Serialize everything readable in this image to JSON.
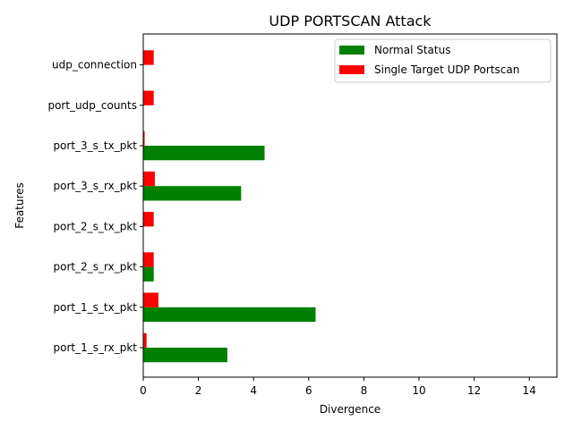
{
  "chart_data": {
    "type": "bar",
    "orientation": "horizontal",
    "title": "UDP PORTSCAN Attack",
    "xlabel": "Divergence",
    "ylabel": "Features",
    "xlim": [
      0,
      15
    ],
    "xticks": [
      "0",
      "2",
      "4",
      "6",
      "8",
      "10",
      "12",
      "14"
    ],
    "categories": [
      "port_1_s_rx_pkt",
      "port_1_s_tx_pkt",
      "port_2_s_rx_pkt",
      "port_2_s_tx_pkt",
      "port_3_s_rx_pkt",
      "port_3_s_tx_pkt",
      "port_udp_counts",
      "udp_connection"
    ],
    "series": [
      {
        "name": "Normal Status",
        "color": "#008000",
        "values": [
          3.05,
          6.25,
          0.38,
          0.0,
          3.55,
          4.4,
          0.0,
          0.0
        ]
      },
      {
        "name": "Single Target UDP Portscan",
        "color": "#ff0000",
        "values": [
          0.12,
          0.55,
          0.38,
          0.38,
          0.42,
          0.05,
          0.38,
          0.38
        ]
      }
    ],
    "legend_position": "top-right",
    "grid": false
  }
}
